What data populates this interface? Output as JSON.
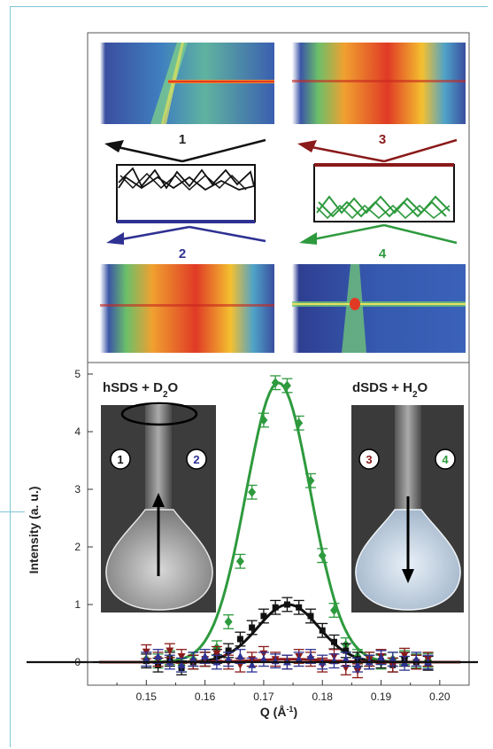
{
  "panel_top": {
    "samples": [
      {
        "label": "1",
        "color": "#222222"
      },
      {
        "label": "2",
        "color": "#2e3192"
      },
      {
        "label": "3",
        "color": "#8b1a1a"
      },
      {
        "label": "4",
        "color": "#2e9a3e"
      }
    ]
  },
  "photos": {
    "left": {
      "title_prefix": "hSDS + D",
      "title_sub": "2",
      "title_suffix": "O",
      "marker_a": "1",
      "marker_b": "2",
      "arrow": "up"
    },
    "right": {
      "title_prefix": "dSDS + H",
      "title_sub": "2",
      "title_suffix": "O",
      "marker_a": "3",
      "marker_b": "4",
      "arrow": "down"
    }
  },
  "chart_data": {
    "type": "line",
    "xlabel_main": "Q (Å",
    "xlabel_sup": "-1",
    "xlabel_end": ")",
    "ylabel": "Intensity (a. u.)",
    "xlim": [
      0.14,
      0.205
    ],
    "ylim": [
      -0.4,
      5.2
    ],
    "x_ticks": [
      0.15,
      0.16,
      0.17,
      0.18,
      0.19,
      0.2
    ],
    "x_tick_labels": [
      "0.15",
      "0.16",
      "0.17",
      "0.18",
      "0.19",
      "0.20"
    ],
    "y_ticks": [
      0,
      1,
      2,
      3,
      4,
      5
    ],
    "y_tick_labels": [
      "0",
      "1",
      "2",
      "3",
      "4",
      "5"
    ],
    "series": [
      {
        "color": "#2e9a3e",
        "marker": "diamond",
        "x": [
          0.15,
          0.152,
          0.154,
          0.156,
          0.158,
          0.16,
          0.162,
          0.164,
          0.166,
          0.168,
          0.17,
          0.172,
          0.174,
          0.176,
          0.178,
          0.18,
          0.182,
          0.184,
          0.186,
          0.188,
          0.19,
          0.192,
          0.194,
          0.196,
          0.198
        ],
        "y": [
          0.05,
          0.02,
          0.08,
          -0.05,
          0.05,
          0.05,
          0.25,
          0.7,
          1.75,
          2.95,
          4.2,
          4.85,
          4.8,
          4.15,
          3.15,
          1.85,
          0.9,
          0.3,
          0.1,
          0.05,
          0.0,
          0.05,
          0.08,
          0.02,
          0.03
        ]
      },
      {
        "color": "#111111",
        "marker": "square",
        "x": [
          0.15,
          0.152,
          0.154,
          0.156,
          0.158,
          0.16,
          0.162,
          0.164,
          0.166,
          0.168,
          0.17,
          0.172,
          0.174,
          0.176,
          0.178,
          0.18,
          0.182,
          0.184,
          0.186,
          0.188,
          0.19,
          0.192,
          0.194,
          0.196,
          0.198
        ],
        "y": [
          0.02,
          -0.05,
          0.05,
          -0.1,
          0.0,
          0.05,
          0.1,
          0.2,
          0.4,
          0.6,
          0.8,
          0.95,
          1.0,
          0.95,
          0.8,
          0.55,
          0.35,
          0.2,
          0.05,
          0.0,
          0.02,
          -0.05,
          0.05,
          0.0,
          -0.02
        ]
      },
      {
        "color": "#8b1a1a",
        "marker": "triangle-down",
        "x": [
          0.15,
          0.152,
          0.154,
          0.156,
          0.158,
          0.16,
          0.162,
          0.164,
          0.166,
          0.168,
          0.17,
          0.172,
          0.174,
          0.176,
          0.178,
          0.18,
          0.182,
          0.184,
          0.186,
          0.188,
          0.19,
          0.192,
          0.194,
          0.196,
          0.198
        ],
        "y": [
          0.18,
          0.05,
          0.2,
          0.1,
          0.0,
          0.05,
          0.15,
          0.0,
          -0.05,
          0.05,
          0.15,
          0.05,
          0.0,
          0.1,
          0.05,
          -0.05,
          0.1,
          -0.1,
          -0.15,
          0.05,
          0.1,
          -0.05,
          0.12,
          0.0,
          0.05
        ]
      },
      {
        "color": "#2e3192",
        "marker": "triangle-up",
        "x": [
          0.15,
          0.152,
          0.154,
          0.156,
          0.158,
          0.16,
          0.162,
          0.164,
          0.166,
          0.168,
          0.17,
          0.172,
          0.174,
          0.176,
          0.178,
          0.18,
          0.182,
          0.184,
          0.186,
          0.188,
          0.19,
          0.192,
          0.194,
          0.196,
          0.198
        ],
        "y": [
          0.05,
          0.1,
          0.0,
          -0.05,
          0.05,
          0.1,
          0.0,
          0.05,
          0.1,
          -0.05,
          0.05,
          0.02,
          0.0,
          0.05,
          0.1,
          0.0,
          0.02,
          0.05,
          -0.05,
          0.0,
          0.08,
          0.05,
          -0.02,
          0.05,
          0.0
        ]
      }
    ],
    "fits": [
      {
        "color": "#2e9a3e",
        "center": 0.1725,
        "amplitude": 4.85,
        "sigma": 0.0055
      },
      {
        "color": "#111111",
        "center": 0.1742,
        "amplitude": 1.0,
        "sigma": 0.0052
      },
      {
        "color": "#8b1a1a",
        "center": 0.1745,
        "amplitude": 0.05,
        "sigma": 0.006
      }
    ]
  }
}
